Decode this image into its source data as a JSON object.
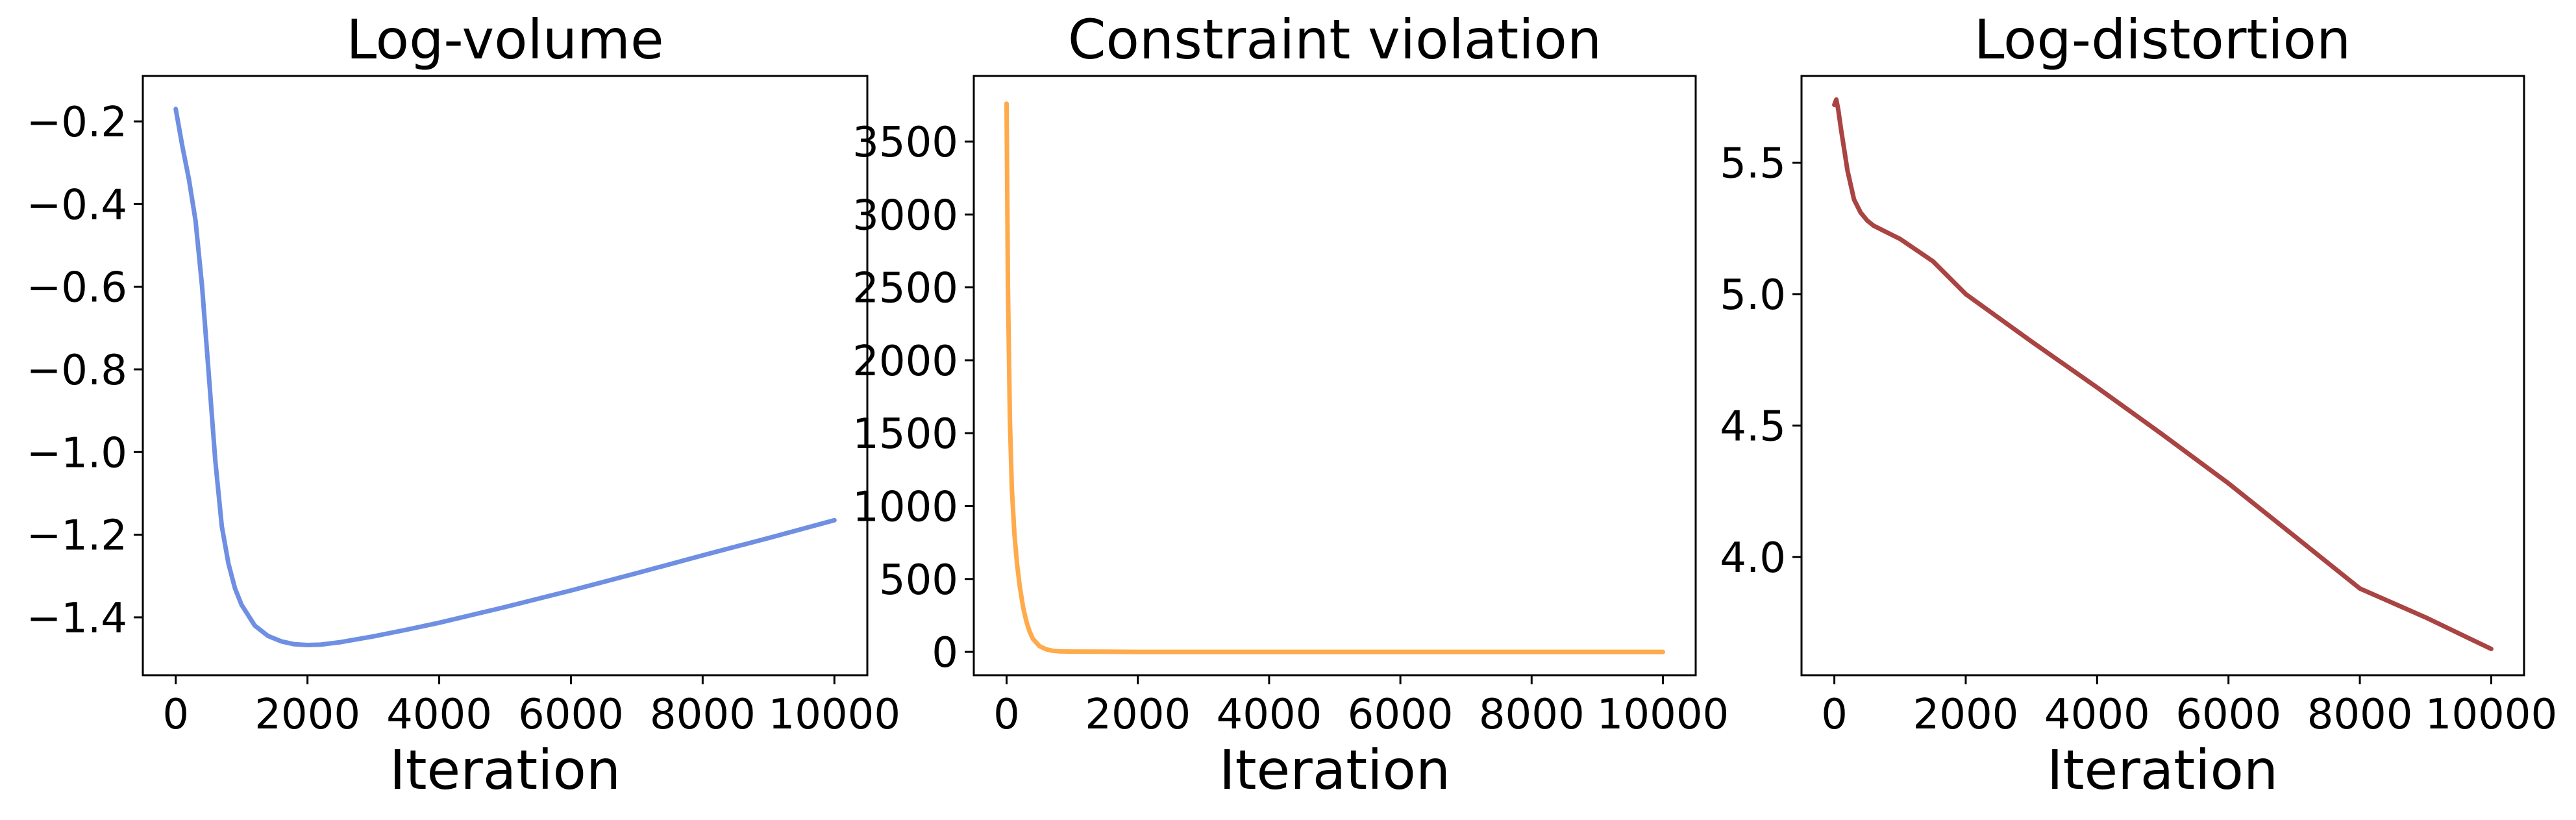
{
  "chart_data": [
    {
      "type": "line",
      "title": "Log-volume",
      "xlabel": "Iteration",
      "ylabel": "",
      "xlim": [
        -500,
        10500
      ],
      "ylim": [
        -1.54,
        -0.09
      ],
      "xticks": [
        0,
        2000,
        4000,
        6000,
        8000,
        10000
      ],
      "xtick_labels": [
        "0",
        "2000",
        "4000",
        "6000",
        "8000",
        "10000"
      ],
      "yticks": [
        -1.4,
        -1.2,
        -1.0,
        -0.8,
        -0.6,
        -0.4,
        -0.2
      ],
      "ytick_labels": [
        "−1.4",
        "−1.2",
        "−1.0",
        "−0.8",
        "−0.6",
        "−0.4",
        "−0.2"
      ],
      "grid": false,
      "series": [
        {
          "color": "#6f8fe3",
          "x": [
            0,
            100,
            200,
            300,
            400,
            500,
            600,
            700,
            800,
            900,
            1000,
            1200,
            1400,
            1600,
            1800,
            2000,
            2200,
            2500,
            3000,
            3500,
            4000,
            5000,
            6000,
            7000,
            8000,
            9000,
            10000
          ],
          "y": [
            -0.17,
            -0.26,
            -0.34,
            -0.44,
            -0.6,
            -0.81,
            -1.02,
            -1.18,
            -1.27,
            -1.33,
            -1.37,
            -1.42,
            -1.445,
            -1.458,
            -1.465,
            -1.467,
            -1.466,
            -1.46,
            -1.446,
            -1.43,
            -1.413,
            -1.375,
            -1.335,
            -1.293,
            -1.25,
            -1.208,
            -1.165
          ]
        }
      ]
    },
    {
      "type": "line",
      "title": "Constraint violation",
      "xlabel": "Iteration",
      "ylabel": "",
      "xlim": [
        -500,
        10500
      ],
      "ylim": [
        -160,
        3950
      ],
      "xticks": [
        0,
        2000,
        4000,
        6000,
        8000,
        10000
      ],
      "xtick_labels": [
        "0",
        "2000",
        "4000",
        "6000",
        "8000",
        "10000"
      ],
      "yticks": [
        0,
        500,
        1000,
        1500,
        2000,
        2500,
        3000,
        3500
      ],
      "ytick_labels": [
        "0",
        "500",
        "1000",
        "1500",
        "2000",
        "2500",
        "3000",
        "3500"
      ],
      "grid": false,
      "series": [
        {
          "color": "#ffaa4b",
          "x": [
            0,
            20,
            50,
            80,
            120,
            160,
            200,
            250,
            300,
            350,
            400,
            500,
            600,
            700,
            800,
            1000,
            1500,
            2000,
            5000,
            10000
          ],
          "y": [
            3760,
            2500,
            1600,
            1120,
            800,
            600,
            450,
            310,
            210,
            140,
            90,
            40,
            18,
            8,
            4,
            2,
            1,
            0,
            0,
            0
          ]
        }
      ]
    },
    {
      "type": "line",
      "title": "Log-distortion",
      "xlabel": "Iteration",
      "ylabel": "",
      "xlim": [
        -500,
        10500
      ],
      "ylim": [
        3.55,
        5.83
      ],
      "xticks": [
        0,
        2000,
        4000,
        6000,
        8000,
        10000
      ],
      "xtick_labels": [
        "0",
        "2000",
        "4000",
        "6000",
        "8000",
        "10000"
      ],
      "yticks": [
        4.0,
        4.5,
        5.0,
        5.5
      ],
      "ytick_labels": [
        "4.0",
        "4.5",
        "5.0",
        "5.5"
      ],
      "grid": false,
      "series": [
        {
          "color": "#a94442",
          "x": [
            0,
            30,
            60,
            100,
            150,
            200,
            300,
            400,
            500,
            600,
            800,
            1000,
            1500,
            2000,
            3000,
            4000,
            5000,
            6000,
            7000,
            8000,
            9000,
            10000
          ],
          "y": [
            5.72,
            5.74,
            5.7,
            5.63,
            5.55,
            5.47,
            5.36,
            5.31,
            5.28,
            5.26,
            5.235,
            5.21,
            5.125,
            5.0,
            4.82,
            4.645,
            4.465,
            4.28,
            4.08,
            3.88,
            3.77,
            3.65
          ]
        }
      ]
    }
  ]
}
